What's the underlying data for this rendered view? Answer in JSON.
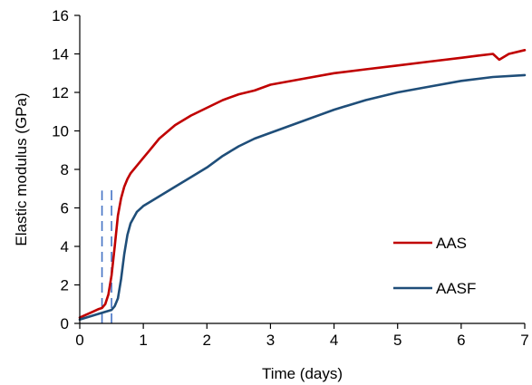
{
  "chart_data": {
    "type": "line",
    "title": "",
    "xlabel": "Time (days)",
    "ylabel": "Elastic modulus (GPa)",
    "xlim": [
      0,
      7
    ],
    "ylim": [
      0,
      16
    ],
    "xticks": [
      "0",
      "1",
      "2",
      "3",
      "4",
      "5",
      "6",
      "7"
    ],
    "yticks": [
      "0",
      "2",
      "4",
      "6",
      "8",
      "10",
      "12",
      "14",
      "16"
    ],
    "grid": false,
    "legend_position": "bottom-right",
    "series": [
      {
        "name": "AAS",
        "color": "#C00000",
        "x": [
          0,
          0.1,
          0.2,
          0.3,
          0.35,
          0.4,
          0.45,
          0.5,
          0.55,
          0.6,
          0.65,
          0.7,
          0.75,
          0.8,
          0.9,
          1.0,
          1.1,
          1.25,
          1.5,
          1.75,
          2.0,
          2.25,
          2.5,
          2.75,
          3.0,
          3.5,
          4.0,
          4.5,
          5.0,
          5.5,
          6.0,
          6.25,
          6.5,
          6.6,
          6.75,
          7.0
        ],
        "y": [
          0.3,
          0.45,
          0.6,
          0.75,
          0.8,
          1.0,
          1.5,
          2.5,
          4.0,
          5.6,
          6.5,
          7.1,
          7.5,
          7.8,
          8.2,
          8.6,
          9.0,
          9.6,
          10.3,
          10.8,
          11.2,
          11.6,
          11.9,
          12.1,
          12.4,
          12.7,
          13.0,
          13.2,
          13.4,
          13.6,
          13.8,
          13.9,
          14.0,
          13.7,
          14.0,
          14.2
        ]
      },
      {
        "name": "AASF",
        "color": "#1F4E79",
        "x": [
          0,
          0.1,
          0.2,
          0.3,
          0.4,
          0.5,
          0.55,
          0.6,
          0.65,
          0.7,
          0.75,
          0.8,
          0.9,
          1.0,
          1.1,
          1.25,
          1.5,
          1.75,
          2.0,
          2.25,
          2.5,
          2.75,
          3.0,
          3.5,
          4.0,
          4.5,
          5.0,
          5.5,
          6.0,
          6.5,
          7.0
        ],
        "y": [
          0.2,
          0.3,
          0.4,
          0.5,
          0.6,
          0.7,
          0.9,
          1.3,
          2.3,
          3.6,
          4.6,
          5.2,
          5.8,
          6.1,
          6.3,
          6.6,
          7.1,
          7.6,
          8.1,
          8.7,
          9.2,
          9.6,
          9.9,
          10.5,
          11.1,
          11.6,
          12.0,
          12.3,
          12.6,
          12.8,
          12.9
        ]
      }
    ],
    "annotations": [
      {
        "type": "vertical-dashed-line",
        "x": 0.35,
        "y_range": [
          0,
          6.9
        ],
        "color": "#4472C4"
      },
      {
        "type": "vertical-dashed-line",
        "x": 0.5,
        "y_range": [
          0,
          7.2
        ],
        "color": "#4472C4"
      }
    ]
  }
}
